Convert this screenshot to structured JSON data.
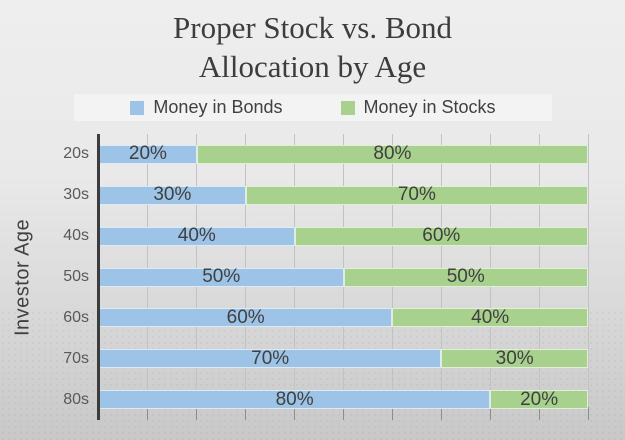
{
  "title": {
    "line1": "Proper Stock vs. Bond",
    "line2": "Allocation by Age"
  },
  "legend": [
    {
      "label": "Money in Bonds",
      "color": "#9dc3e6"
    },
    {
      "label": "Money in Stocks",
      "color": "#a9d18e"
    }
  ],
  "y_axis_title": "Investor Age",
  "colors": {
    "bonds": "#9dc3e6",
    "stocks": "#a9d18e",
    "gridline": "#c2c2c2",
    "axis": "#3c3c3c",
    "text": "#404040",
    "background_top": "#eeeeee",
    "background_bottom": "#c8c8c8"
  },
  "chart_data": {
    "type": "bar",
    "orientation": "horizontal",
    "stacked": true,
    "title": "Proper Stock vs. Bond Allocation by Age",
    "ylabel": "Investor Age",
    "xlabel": "",
    "categories": [
      "20s",
      "30s",
      "40s",
      "50s",
      "60s",
      "70s",
      "80s"
    ],
    "series": [
      {
        "name": "Money in Bonds",
        "slug": "bonds-segment",
        "color": "#9dc3e6",
        "values": [
          20,
          30,
          40,
          50,
          60,
          70,
          80
        ],
        "labels": [
          "20%",
          "30%",
          "40%",
          "50%",
          "60%",
          "70%",
          "80%"
        ]
      },
      {
        "name": "Money in Stocks",
        "slug": "stocks-segment",
        "color": "#a9d18e",
        "values": [
          80,
          70,
          60,
          50,
          40,
          30,
          20
        ],
        "labels": [
          "80%",
          "70%",
          "60%",
          "50%",
          "40%",
          "30%",
          "20%"
        ]
      }
    ],
    "xlim": [
      0,
      100
    ],
    "gridline_step": 10,
    "grid": true,
    "legend_position": "top",
    "data_labels": true
  }
}
